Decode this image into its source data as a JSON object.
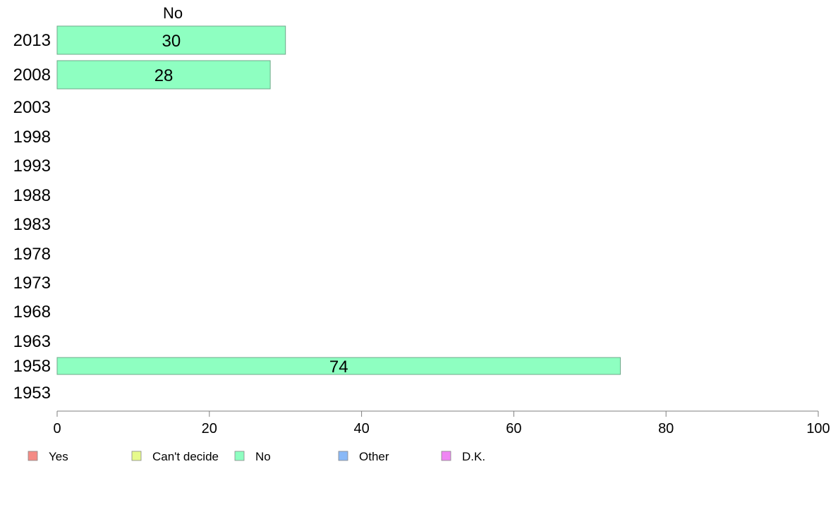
{
  "chart_data": {
    "type": "bar",
    "orientation": "horizontal",
    "title": "",
    "column_header": "No",
    "categories": [
      "2013",
      "2008",
      "2003",
      "1998",
      "1993",
      "1988",
      "1983",
      "1978",
      "1973",
      "1968",
      "1963",
      "1958",
      "1953"
    ],
    "series": [
      {
        "name": "No",
        "color": "#8effc1",
        "values": [
          30,
          28,
          null,
          null,
          null,
          null,
          null,
          null,
          null,
          null,
          null,
          74,
          null
        ]
      }
    ],
    "xlim": [
      0,
      100
    ],
    "xticks": [
      "0",
      "20",
      "40",
      "60",
      "80",
      "100"
    ],
    "xlabel": "",
    "ylabel": "",
    "grid": false,
    "legend_position": "bottom",
    "legend": [
      {
        "label": "Yes",
        "color": "#f48b85"
      },
      {
        "label": "Can't decide",
        "color": "#e6fa8c"
      },
      {
        "label": "No",
        "color": "#8effc1"
      },
      {
        "label": "Other",
        "color": "#8ab9f7"
      },
      {
        "label": "D.K.",
        "color": "#ef86f3"
      }
    ]
  }
}
